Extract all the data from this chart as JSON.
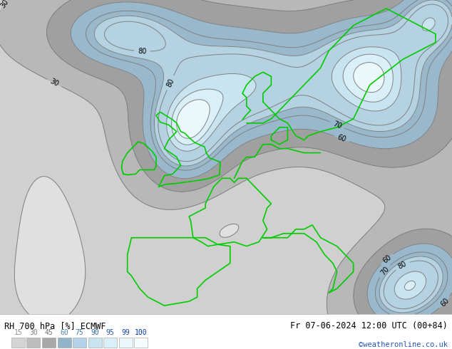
{
  "title_left": "RH 700 hPa [%] ECMWF",
  "title_right": "Fr 07-06-2024 12:00 UTC (00+84)",
  "credit": "©weatheronline.co.uk",
  "legend_values": [
    15,
    30,
    45,
    60,
    75,
    90,
    95,
    99,
    100
  ],
  "legend_colors_fill": [
    "#d4d4d4",
    "#bebebe",
    "#a8a8a8",
    "#92b4c8",
    "#b4d2e8",
    "#c8e4f0",
    "#daf0f8",
    "#eaf8fc",
    "#f4fcff"
  ],
  "contour_color": "#808080",
  "coastline_color": "#00cc00",
  "label_color": "#000000",
  "fill_levels": [
    0,
    15,
    30,
    45,
    60,
    75,
    90,
    95,
    99,
    105
  ],
  "fill_colors": [
    "#e0e0e0",
    "#d0d0d0",
    "#b8b8b8",
    "#a0a0a0",
    "#9ab8cc",
    "#b4d2e2",
    "#c8e4f0",
    "#daf0f8",
    "#eaf8fc"
  ],
  "contour_levels": [
    15,
    30,
    45,
    60,
    70,
    75,
    80,
    90,
    95,
    99
  ],
  "label_levels": [
    30,
    60,
    70,
    80
  ],
  "map_extent": [
    -25,
    30,
    35,
    72
  ],
  "fig_width": 6.34,
  "fig_height": 4.9,
  "dpi": 100
}
